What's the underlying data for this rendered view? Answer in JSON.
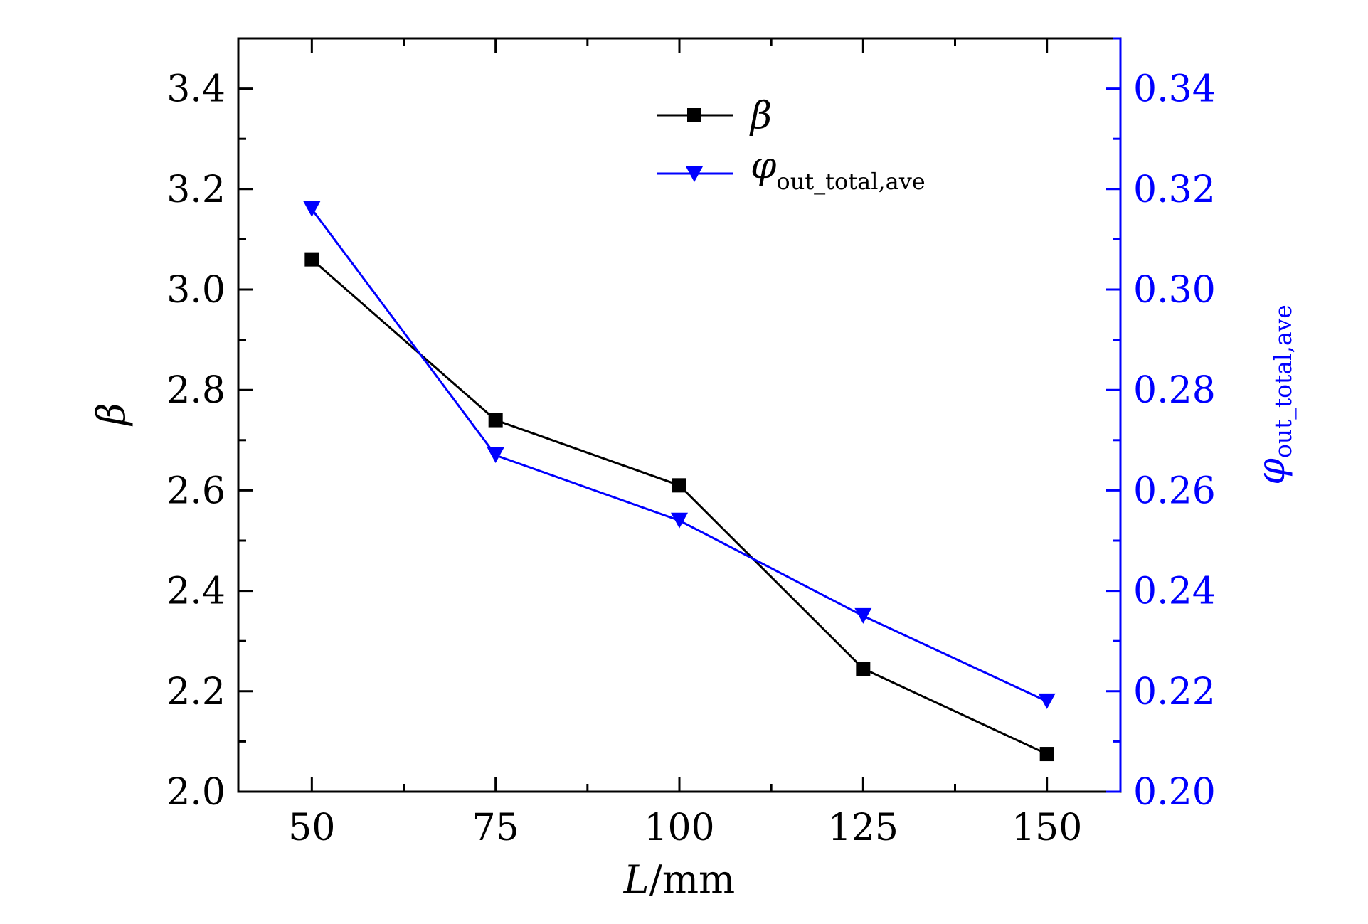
{
  "chart_data": {
    "type": "line",
    "x": [
      50,
      75,
      100,
      125,
      150
    ],
    "xlim": [
      40,
      160
    ],
    "x_ticks": [
      "50",
      "75",
      "100",
      "125",
      "150"
    ],
    "xlabel": {
      "italic": "L",
      "rest": "/mm"
    },
    "y_left": {
      "label": "β",
      "lim": [
        2.0,
        3.5
      ],
      "ticks": [
        "2.0",
        "2.2",
        "2.4",
        "2.6",
        "2.8",
        "3.0",
        "3.2",
        "3.4"
      ],
      "color": "#000000"
    },
    "y_right": {
      "label": {
        "symbol": "φ",
        "subscript": "out_total,ave"
      },
      "lim": [
        0.2,
        0.35
      ],
      "ticks": [
        "0.20",
        "0.22",
        "0.24",
        "0.26",
        "0.28",
        "0.30",
        "0.32",
        "0.34"
      ],
      "color": "#0000ff"
    },
    "series": [
      {
        "name": "β",
        "axis": "left",
        "marker": "square",
        "color": "#000000",
        "values": [
          3.06,
          2.74,
          2.61,
          2.245,
          2.075
        ]
      },
      {
        "name": "φout_total,ave",
        "name_symbol": "φ",
        "name_subscript": "out_total,ave",
        "axis": "right",
        "marker": "triangle-down",
        "color": "#0000ff",
        "values": [
          0.316,
          0.267,
          0.254,
          0.235,
          0.218
        ]
      }
    ],
    "grid": false,
    "legend_position": "top-center"
  }
}
